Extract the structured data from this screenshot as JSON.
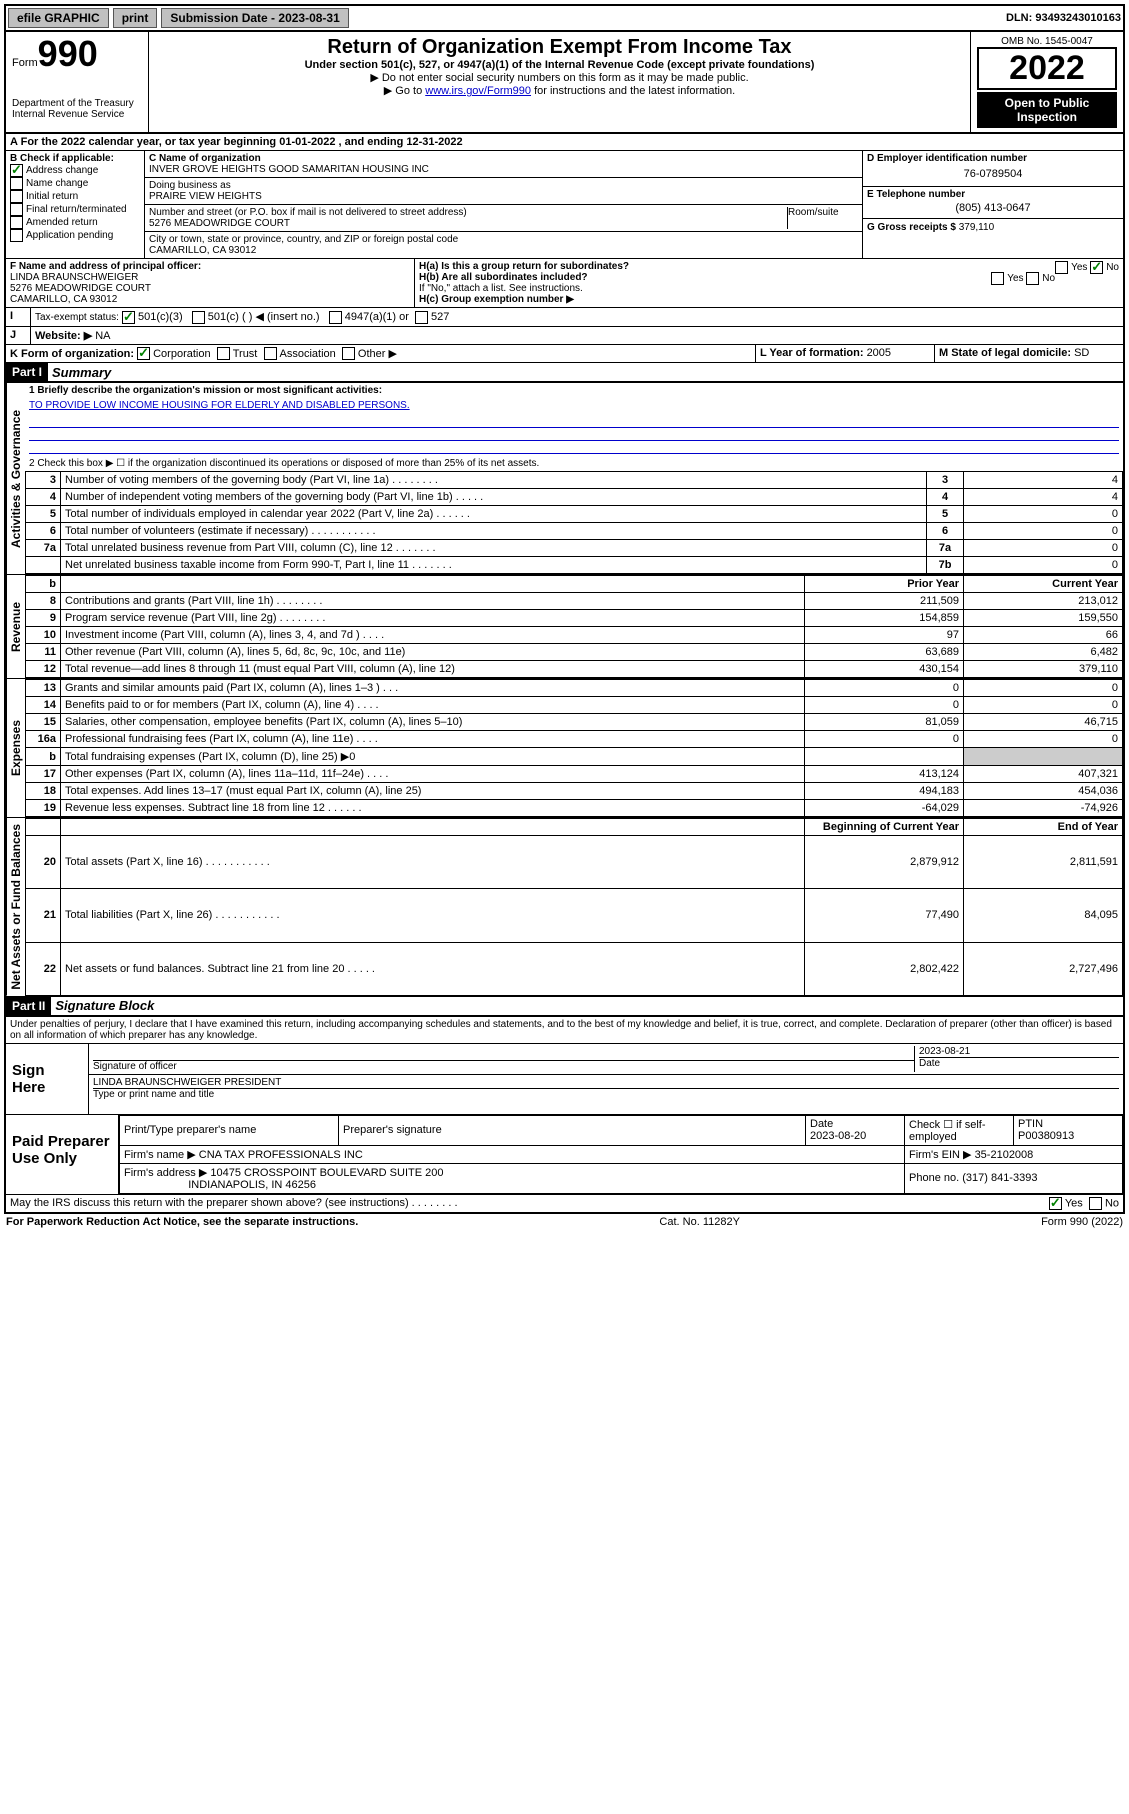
{
  "topbar": {
    "efile": "efile GRAPHIC",
    "print": "print",
    "sub_label": "Submission Date - ",
    "sub_date": "2023-08-31",
    "dln_label": "DLN: ",
    "dln": "93493243010163"
  },
  "header": {
    "form_label": "Form",
    "form_no": "990",
    "dept": "Department of the Treasury",
    "irs": "Internal Revenue Service",
    "title": "Return of Organization Exempt From Income Tax",
    "sub1": "Under section 501(c), 527, or 4947(a)(1) of the Internal Revenue Code (except private foundations)",
    "sub2": "▶ Do not enter social security numbers on this form as it may be made public.",
    "sub3_pre": "▶ Go to ",
    "sub3_link": "www.irs.gov/Form990",
    "sub3_post": " for instructions and the latest information.",
    "omb": "OMB No. 1545-0047",
    "year": "2022",
    "inspect": "Open to Public Inspection"
  },
  "period": {
    "text_a": "For the 2022 calendar year, or tax year beginning ",
    "begin": "01-01-2022",
    "text_b": " , and ending ",
    "end": "12-31-2022"
  },
  "boxB": {
    "label": "B Check if applicable:",
    "items": [
      "Address change",
      "Name change",
      "Initial return",
      "Final return/terminated",
      "Amended return",
      "Application pending"
    ],
    "checked": [
      true,
      false,
      false,
      false,
      false,
      false
    ]
  },
  "boxC": {
    "name_label": "C Name of organization",
    "name": "INVER GROVE HEIGHTS GOOD SAMARITAN HOUSING INC",
    "dba_label": "Doing business as",
    "dba": "PRAIRE VIEW HEIGHTS",
    "addr_label": "Number and street (or P.O. box if mail is not delivered to street address)",
    "room_label": "Room/suite",
    "addr": "5276 MEADOWRIDGE COURT",
    "city_label": "City or town, state or province, country, and ZIP or foreign postal code",
    "city": "CAMARILLO, CA  93012"
  },
  "boxD": {
    "label": "D Employer identification number",
    "value": "76-0789504"
  },
  "boxE": {
    "label": "E Telephone number",
    "value": "(805) 413-0647"
  },
  "boxG": {
    "label": "G Gross receipts $ ",
    "value": "379,110"
  },
  "boxF": {
    "label": "F  Name and address of principal officer:",
    "l1": "LINDA BRAUNSCHWEIGER",
    "l2": "5276 MEADOWRIDGE COURT",
    "l3": "CAMARILLO, CA  93012"
  },
  "boxH": {
    "a_label": "H(a)  Is this a group return for subordinates?",
    "a_yes": "Yes",
    "a_no": "No",
    "b_label": "H(b)  Are all subordinates included?",
    "b_note": "If \"No,\" attach a list. See instructions.",
    "c_label": "H(c)  Group exemption number ▶"
  },
  "boxI": {
    "label": "Tax-exempt status:",
    "o1": "501(c)(3)",
    "o2": "501(c) (  ) ◀ (insert no.)",
    "o3": "4947(a)(1) or",
    "o4": "527"
  },
  "boxJ": {
    "label": "Website: ▶",
    "value": "NA"
  },
  "boxK": {
    "label": "K Form of organization:",
    "o1": "Corporation",
    "o2": "Trust",
    "o3": "Association",
    "o4": "Other ▶"
  },
  "boxL": {
    "label": "L Year of formation: ",
    "value": "2005"
  },
  "boxM": {
    "label": "M State of legal domicile: ",
    "value": "SD"
  },
  "part1": {
    "tag": "Part I",
    "title": "Summary",
    "q1_label": "1   Briefly describe the organization's mission or most significant activities:",
    "q1": "TO PROVIDE LOW INCOME HOUSING FOR ELDERLY AND DISABLED PERSONS.",
    "q2": "2   Check this box ▶ ☐  if the organization discontinued its operations or disposed of more than 25% of its net assets."
  },
  "gov_rows": [
    {
      "n": "3",
      "d": "Number of voting members of the governing body (Part VI, line 1a)  .    .    .    .    .    .    .    .",
      "b": "3",
      "v": "4"
    },
    {
      "n": "4",
      "d": "Number of independent voting members of the governing body (Part VI, line 1b)   .    .    .    .    .",
      "b": "4",
      "v": "4"
    },
    {
      "n": "5",
      "d": "Total number of individuals employed in calendar year 2022 (Part V, line 2a)   .    .    .    .    .    .",
      "b": "5",
      "v": "0"
    },
    {
      "n": "6",
      "d": "Total number of volunteers (estimate if necessary)   .    .    .    .    .    .    .    .    .    .    .",
      "b": "6",
      "v": "0"
    },
    {
      "n": "7a",
      "d": "Total unrelated business revenue from Part VIII, column (C), line 12   .    .    .    .    .    .    .",
      "b": "7a",
      "v": "0"
    },
    {
      "n": "",
      "d": "Net unrelated business taxable income from Form 990-T, Part I, line 11   .    .    .    .    .    .    .",
      "b": "7b",
      "v": "0"
    }
  ],
  "rev_header": {
    "b": "b",
    "py": "Prior Year",
    "cy": "Current Year"
  },
  "rev_rows": [
    {
      "n": "8",
      "d": "Contributions and grants (Part VIII, line 1h)   .    .    .    .    .    .    .    .",
      "py": "211,509",
      "cy": "213,012"
    },
    {
      "n": "9",
      "d": "Program service revenue (Part VIII, line 2g)   .    .    .    .    .    .    .    .",
      "py": "154,859",
      "cy": "159,550"
    },
    {
      "n": "10",
      "d": "Investment income (Part VIII, column (A), lines 3, 4, and 7d )   .    .    .    .",
      "py": "97",
      "cy": "66"
    },
    {
      "n": "11",
      "d": "Other revenue (Part VIII, column (A), lines 5, 6d, 8c, 9c, 10c, and 11e)",
      "py": "63,689",
      "cy": "6,482"
    },
    {
      "n": "12",
      "d": "Total revenue—add lines 8 through 11 (must equal Part VIII, column (A), line 12)",
      "py": "430,154",
      "cy": "379,110"
    }
  ],
  "exp_rows": [
    {
      "n": "13",
      "d": "Grants and similar amounts paid (Part IX, column (A), lines 1–3 )   .    .    .",
      "py": "0",
      "cy": "0"
    },
    {
      "n": "14",
      "d": "Benefits paid to or for members (Part IX, column (A), line 4)   .    .    .    .",
      "py": "0",
      "cy": "0"
    },
    {
      "n": "15",
      "d": "Salaries, other compensation, employee benefits (Part IX, column (A), lines 5–10)",
      "py": "81,059",
      "cy": "46,715"
    },
    {
      "n": "16a",
      "d": "Professional fundraising fees (Part IX, column (A), line 11e)   .    .    .    .",
      "py": "0",
      "cy": "0"
    },
    {
      "n": "b",
      "d": "Total fundraising expenses (Part IX, column (D), line 25) ▶0",
      "py": "",
      "cy": ""
    },
    {
      "n": "17",
      "d": "Other expenses (Part IX, column (A), lines 11a–11d, 11f–24e)   .    .    .    .",
      "py": "413,124",
      "cy": "407,321"
    },
    {
      "n": "18",
      "d": "Total expenses. Add lines 13–17 (must equal Part IX, column (A), line 25)",
      "py": "494,183",
      "cy": "454,036"
    },
    {
      "n": "19",
      "d": "Revenue less expenses. Subtract line 18 from line 12   .    .    .    .    .    .",
      "py": "-64,029",
      "cy": "-74,926"
    }
  ],
  "net_header": {
    "py": "Beginning of Current Year",
    "cy": "End of Year"
  },
  "net_rows": [
    {
      "n": "20",
      "d": "Total assets (Part X, line 16)   .    .    .    .    .    .    .    .    .    .    .",
      "py": "2,879,912",
      "cy": "2,811,591"
    },
    {
      "n": "21",
      "d": "Total liabilities (Part X, line 26)   .    .    .    .    .    .    .    .    .    .    .",
      "py": "77,490",
      "cy": "84,095"
    },
    {
      "n": "22",
      "d": "Net assets or fund balances. Subtract line 21 from line 20   .    .    .    .    .",
      "py": "2,802,422",
      "cy": "2,727,496"
    }
  ],
  "part2": {
    "tag": "Part II",
    "title": "Signature Block",
    "decl": "Under penalties of perjury, I declare that I have examined this return, including accompanying schedules and statements, and to the best of my knowledge and belief, it is true, correct, and complete. Declaration of preparer (other than officer) is based on all information of which preparer has any knowledge."
  },
  "sign": {
    "here": "Sign Here",
    "sig_label": "Signature of officer",
    "date_label": "Date",
    "date": "2023-08-21",
    "name": "LINDA BRAUNSCHWEIGER  PRESIDENT",
    "name_label": "Type or print name and title"
  },
  "preparer": {
    "label": "Paid Preparer Use Only",
    "h1": "Print/Type preparer's name",
    "h2": "Preparer's signature",
    "h3": "Date",
    "h4": "Check ☐ if self-employed",
    "h5": "PTIN",
    "date": "2023-08-20",
    "ptin": "P00380913",
    "firm_label": "Firm's name   ▶",
    "firm": "CNA TAX PROFESSIONALS INC",
    "ein_label": "Firm's EIN ▶ ",
    "ein": "35-2102008",
    "addr_label": "Firm's address ▶",
    "addr1": "10475 CROSSPOINT BOULEVARD SUITE 200",
    "addr2": "INDIANAPOLIS, IN  46256",
    "phone_label": "Phone no. ",
    "phone": "(317) 841-3393"
  },
  "discuss": {
    "q": "May the IRS discuss this return with the preparer shown above? (see instructions)   .    .    .    .    .    .    .    .",
    "yes": "Yes",
    "no": "No"
  },
  "footer": {
    "l": "For Paperwork Reduction Act Notice, see the separate instructions.",
    "c": "Cat. No. 11282Y",
    "r": "Form 990 (2022)"
  },
  "vlabels": {
    "gov": "Activities & Governance",
    "rev": "Revenue",
    "exp": "Expenses",
    "net": "Net Assets or Fund Balances"
  }
}
